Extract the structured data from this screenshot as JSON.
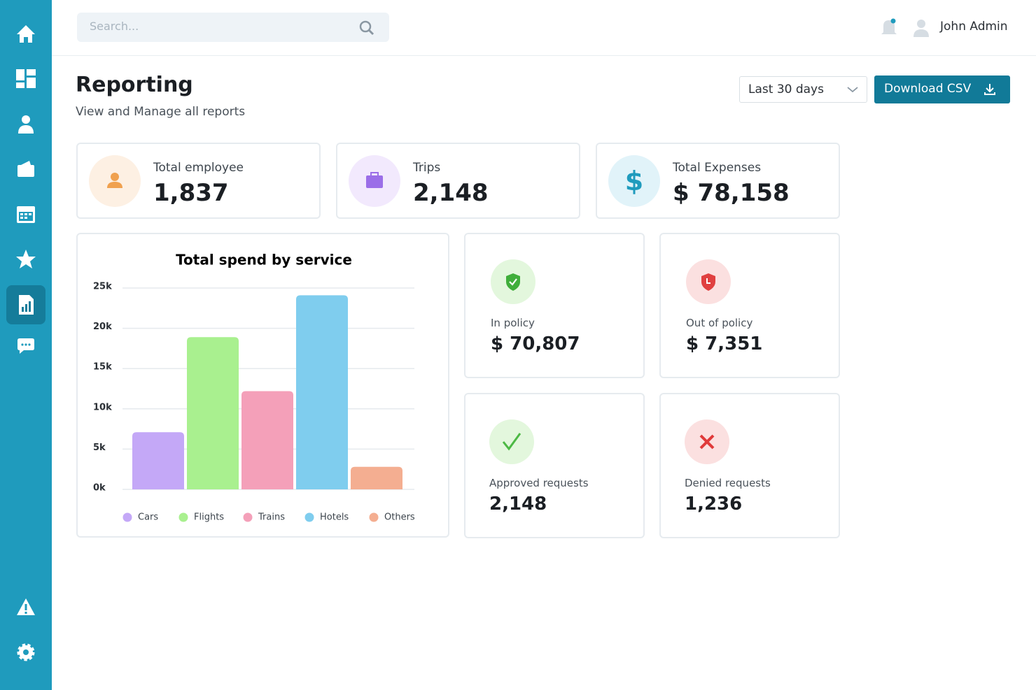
{
  "search": {
    "placeholder": "Search..."
  },
  "user": {
    "name": "John Admin"
  },
  "header": {
    "title": "Reporting",
    "subtitle": "View and Manage all reports"
  },
  "controls": {
    "period": "Last 30 days",
    "download": "Download CSV"
  },
  "stats": [
    {
      "label": "Total employee",
      "value": "1,837"
    },
    {
      "label": "Trips",
      "value": "2,148"
    },
    {
      "label": "Total Expenses",
      "value": "$ 78,158"
    }
  ],
  "tiles": [
    {
      "label": "In policy",
      "value": "$ 70,807"
    },
    {
      "label": "Out of policy",
      "value": "$ 7,351"
    },
    {
      "label": "Approved requests",
      "value": "2,148"
    },
    {
      "label": "Denied requests",
      "value": "1,236"
    }
  ],
  "chart_data": {
    "type": "bar",
    "title": "Total spend by service",
    "categories": [
      "Cars",
      "Flights",
      "Trains",
      "Hotels",
      "Others"
    ],
    "values": [
      7100,
      18900,
      12200,
      24100,
      2800
    ],
    "colors": [
      "#c4a8f7",
      "#a9f08f",
      "#f4a0b9",
      "#7fcdee",
      "#f4ae91"
    ],
    "ylim": [
      0,
      25000
    ],
    "yticks": [
      {
        "value": 0,
        "label": "0k"
      },
      {
        "value": 5000,
        "label": "5k"
      },
      {
        "value": 10000,
        "label": "10k"
      },
      {
        "value": 15000,
        "label": "15k"
      },
      {
        "value": 20000,
        "label": "20k"
      },
      {
        "value": 25000,
        "label": "25k"
      }
    ],
    "grid": true
  }
}
